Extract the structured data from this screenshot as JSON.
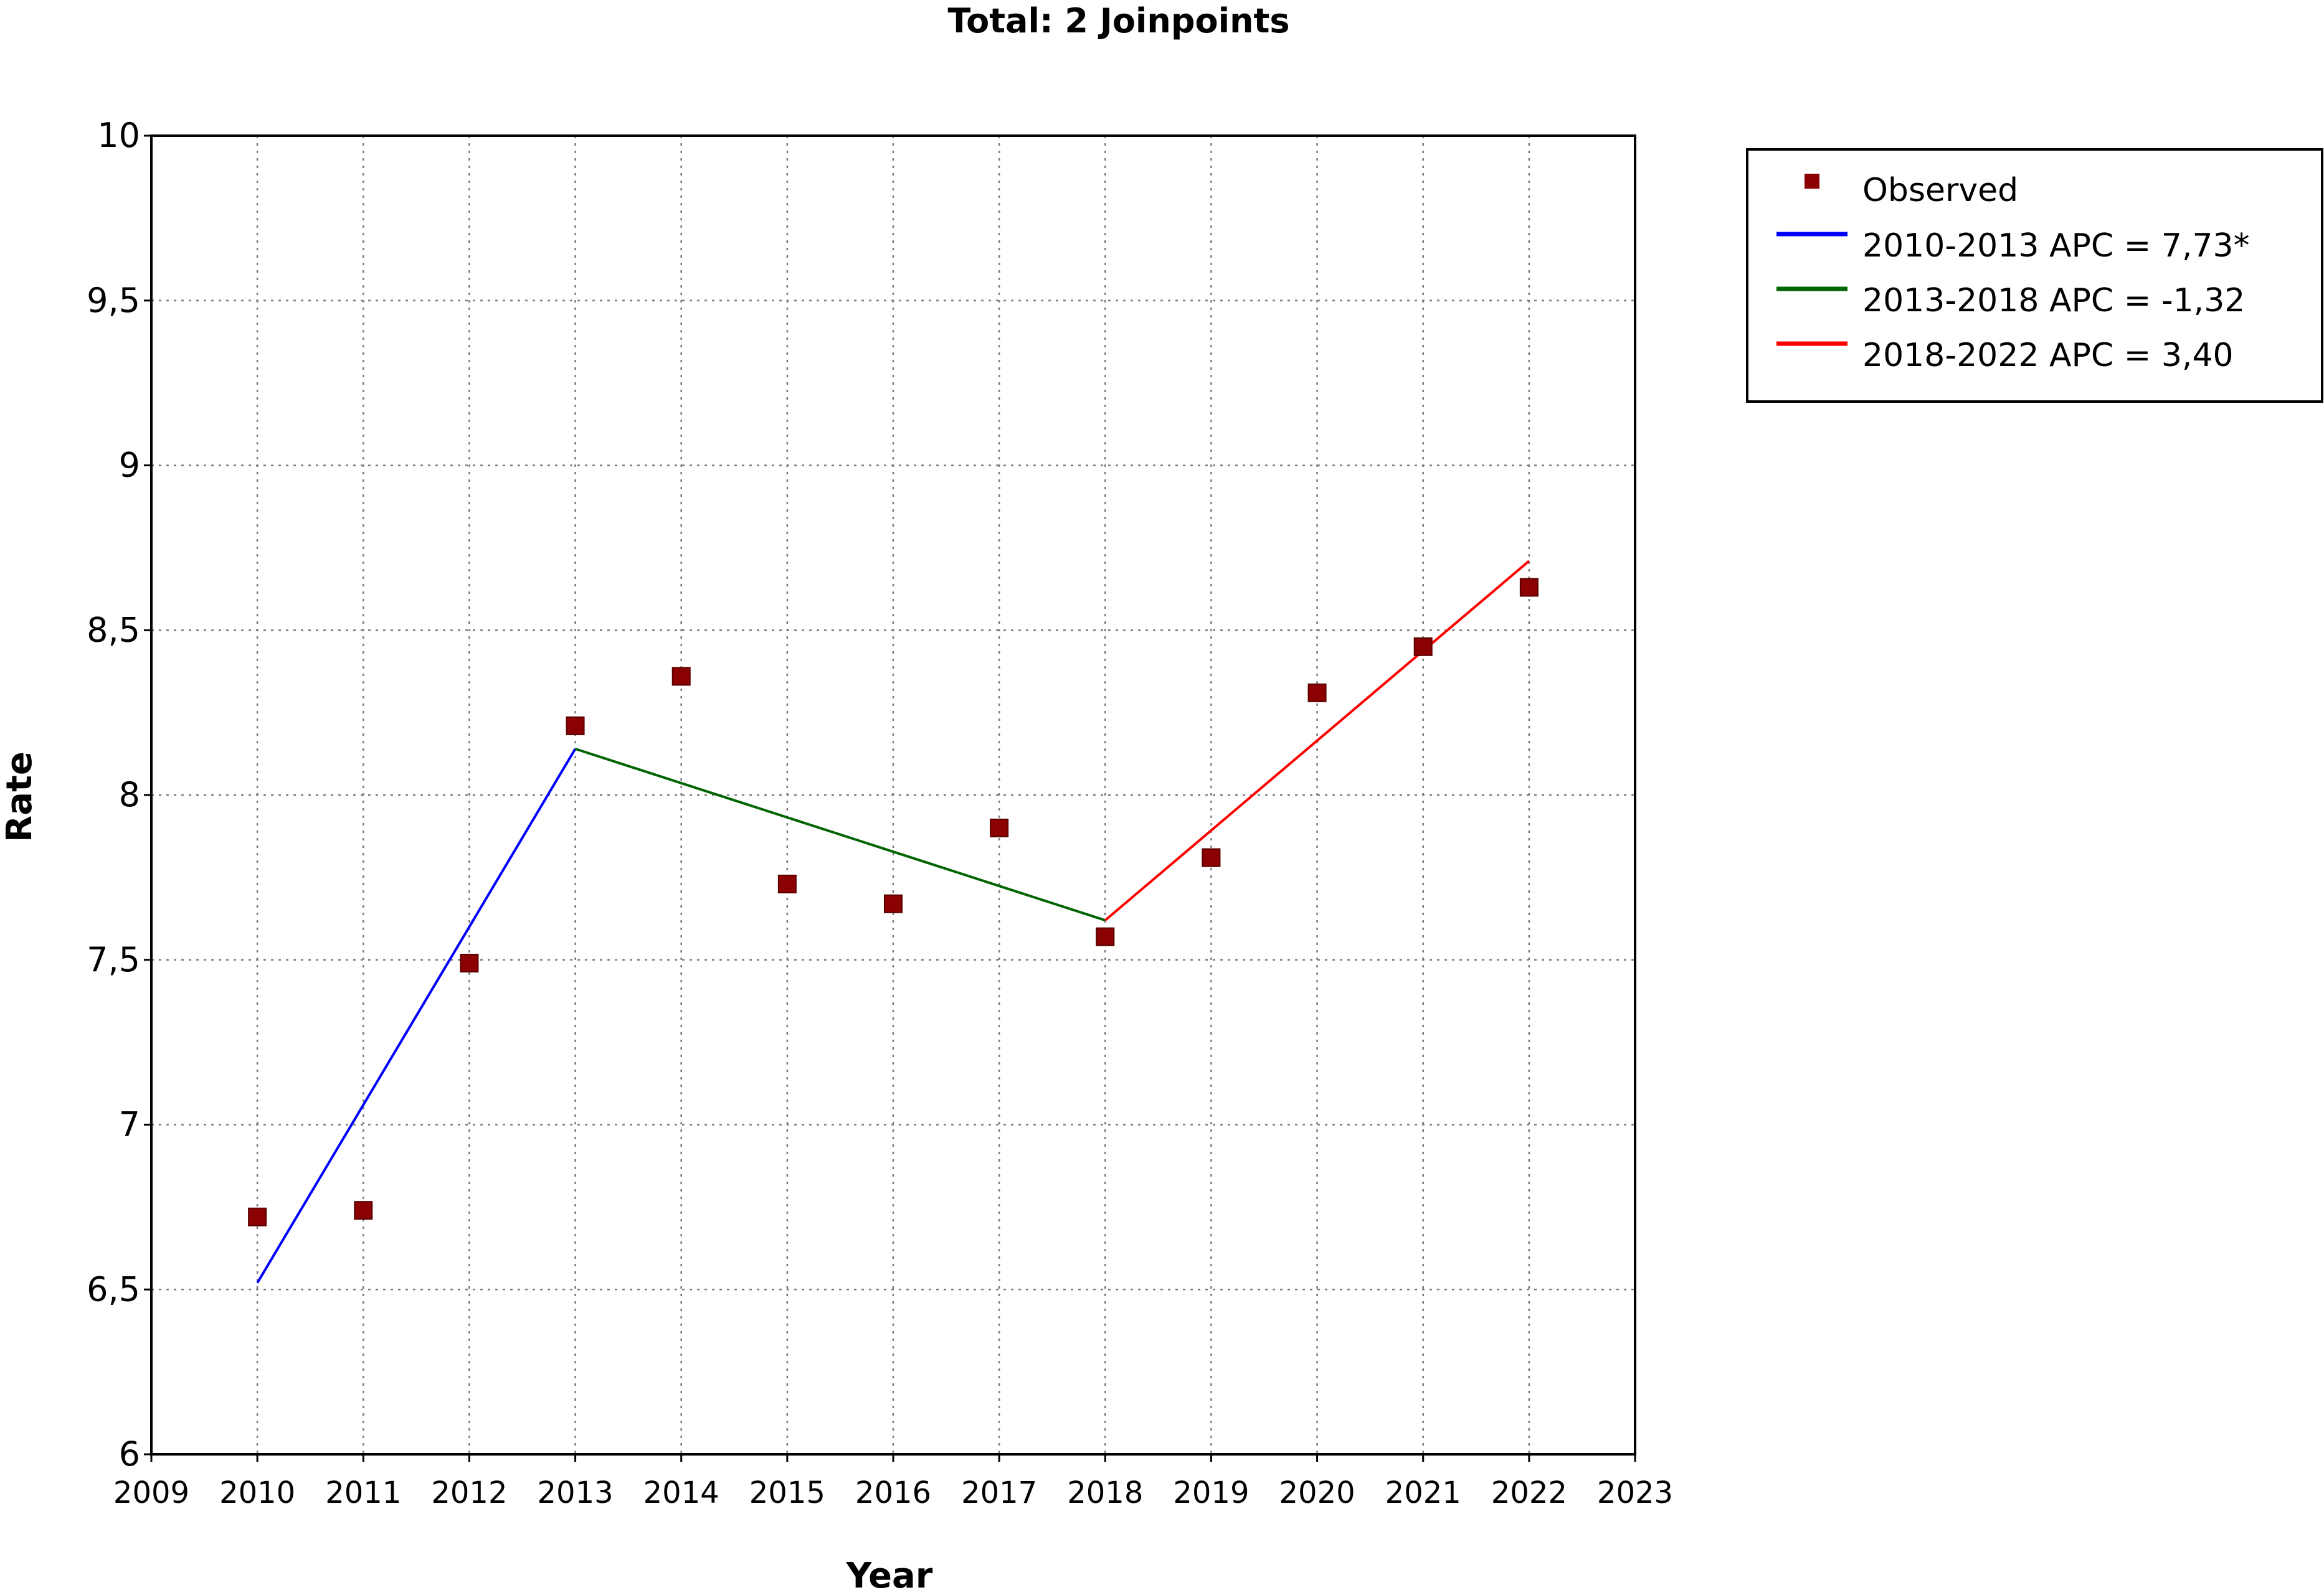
{
  "chart_data": {
    "type": "line",
    "title": "Total: 2 Joinpoints",
    "xlabel": "Year",
    "ylabel": "Rate",
    "xlim": [
      2009,
      2023
    ],
    "ylim": [
      6,
      10
    ],
    "x_ticks": [
      2009,
      2010,
      2011,
      2012,
      2013,
      2014,
      2015,
      2016,
      2017,
      2018,
      2019,
      2020,
      2021,
      2022,
      2023
    ],
    "y_ticks": [
      6,
      6.5,
      7,
      7.5,
      8,
      8.5,
      9,
      9.5,
      10
    ],
    "y_tick_labels": [
      "6",
      "6,5",
      "7",
      "7,5",
      "8",
      "8,5",
      "9",
      "9,5",
      "10"
    ],
    "grid": true,
    "legend_position": "top-right, outside plot",
    "observed": {
      "name": "Observed",
      "color": "#8b0000",
      "x": [
        2010,
        2011,
        2012,
        2013,
        2014,
        2015,
        2016,
        2017,
        2018,
        2019,
        2020,
        2021,
        2022
      ],
      "y": [
        6.72,
        6.74,
        7.49,
        8.21,
        8.36,
        7.73,
        7.67,
        7.9,
        7.57,
        7.81,
        8.31,
        8.45,
        8.63
      ]
    },
    "series": [
      {
        "name": "2010-2013 APC  =  7,73*",
        "color": "#0000ff",
        "x": [
          2010,
          2013
        ],
        "y": [
          6.52,
          8.14
        ]
      },
      {
        "name": "2013-2018 APC  = -1,32",
        "color": "#006400",
        "x": [
          2013,
          2018
        ],
        "y": [
          8.14,
          7.62
        ]
      },
      {
        "name": "2018-2022 APC  =  3,40",
        "color": "#ff0000",
        "x": [
          2018,
          2022
        ],
        "y": [
          7.62,
          8.71
        ]
      }
    ]
  }
}
